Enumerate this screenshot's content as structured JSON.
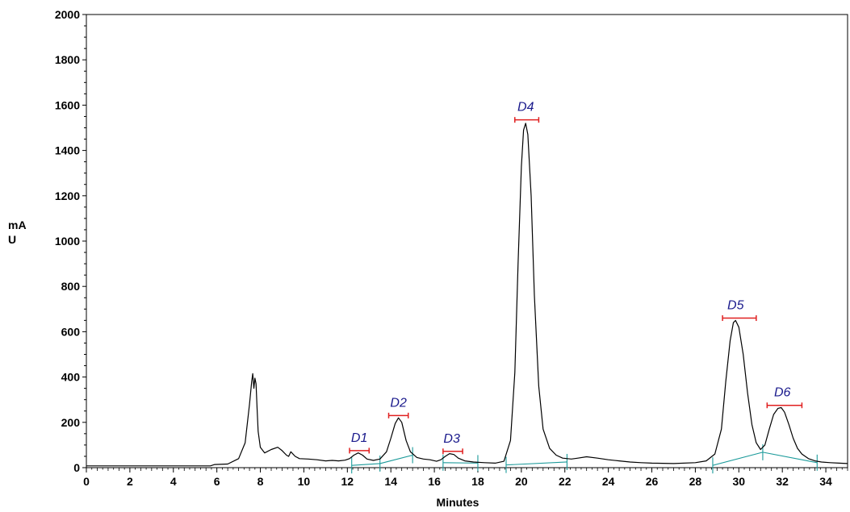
{
  "chart_data": {
    "type": "line",
    "title": "",
    "xlabel": "Minutes",
    "ylabel_line1": "mA",
    "ylabel_line2": "U",
    "xlim": [
      0,
      35
    ],
    "ylim": [
      0,
      2000
    ],
    "x_ticks": [
      0,
      2,
      4,
      6,
      8,
      10,
      12,
      14,
      16,
      18,
      20,
      22,
      24,
      26,
      28,
      30,
      32,
      34
    ],
    "y_ticks": [
      0,
      200,
      400,
      600,
      800,
      1000,
      1200,
      1400,
      1600,
      1800,
      2000
    ],
    "grid": false,
    "legend": "none",
    "colors": {
      "trace": "#000000",
      "baseline": "#1a9a9a",
      "marker": "#e02020",
      "label": "#1a1a8c"
    },
    "series": [
      {
        "x": [
          0,
          5.7,
          5.9,
          6.5,
          7.0,
          7.3,
          7.5,
          7.6,
          7.65,
          7.7,
          7.75,
          7.8,
          7.85,
          7.9,
          8.0,
          8.2,
          8.5,
          8.8,
          9.0,
          9.2,
          9.3,
          9.4,
          9.6,
          9.8,
          10.2,
          10.6,
          11.0,
          11.3,
          11.6,
          11.9,
          12.1,
          12.3,
          12.5,
          12.7,
          12.9,
          13.2,
          13.5,
          13.8,
          14.0,
          14.2,
          14.35,
          14.5,
          14.7,
          14.9,
          15.2,
          15.5,
          15.8,
          16.1,
          16.3,
          16.5,
          16.7,
          16.9,
          17.1,
          17.4,
          17.8,
          18.3,
          18.8,
          19.2,
          19.5,
          19.7,
          19.85,
          20.0,
          20.1,
          20.2,
          20.3,
          20.45,
          20.6,
          20.8,
          21.0,
          21.3,
          21.6,
          21.9,
          22.3,
          22.6,
          23.0,
          23.5,
          24.0,
          24.5,
          25.0,
          25.5,
          26.0,
          27.0,
          28.0,
          28.5,
          28.9,
          29.2,
          29.4,
          29.6,
          29.75,
          29.85,
          30.0,
          30.2,
          30.4,
          30.6,
          30.8,
          31.0,
          31.2,
          31.4,
          31.6,
          31.8,
          31.95,
          32.1,
          32.3,
          32.5,
          32.7,
          32.9,
          33.2,
          33.5,
          33.8,
          34.2,
          34.6,
          35.0
        ],
        "y": [
          8,
          8,
          14,
          16,
          40,
          110,
          280,
          380,
          415,
          350,
          395,
          370,
          260,
          160,
          90,
          65,
          80,
          90,
          75,
          55,
          50,
          70,
          50,
          40,
          38,
          35,
          30,
          32,
          30,
          33,
          40,
          55,
          65,
          55,
          38,
          32,
          38,
          70,
          130,
          195,
          220,
          200,
          120,
          70,
          45,
          38,
          35,
          28,
          35,
          50,
          62,
          58,
          42,
          30,
          25,
          22,
          20,
          28,
          120,
          420,
          900,
          1330,
          1490,
          1520,
          1470,
          1200,
          760,
          360,
          170,
          85,
          55,
          42,
          38,
          42,
          48,
          42,
          35,
          30,
          25,
          22,
          20,
          18,
          22,
          30,
          60,
          170,
          380,
          560,
          640,
          650,
          620,
          500,
          330,
          190,
          110,
          80,
          100,
          170,
          235,
          262,
          265,
          245,
          190,
          130,
          85,
          60,
          40,
          30,
          25,
          22,
          20,
          18
        ]
      }
    ],
    "baselines": [
      {
        "x": [
          12.2,
          13.5
        ],
        "y": [
          10,
          18
        ]
      },
      {
        "x": [
          13.5,
          15.0
        ],
        "y": [
          18,
          55
        ]
      },
      {
        "x": [
          16.4,
          18.0
        ],
        "y": [
          22,
          20
        ]
      },
      {
        "x": [
          19.3,
          22.1
        ],
        "y": [
          12,
          25
        ]
      },
      {
        "x": [
          28.8,
          31.1
        ],
        "y": [
          10,
          68
        ]
      },
      {
        "x": [
          31.1,
          33.6
        ],
        "y": [
          68,
          22
        ]
      }
    ],
    "baseline_ticks": [
      12.2,
      13.5,
      15.0,
      16.4,
      18.0,
      19.3,
      22.1,
      28.8,
      31.1,
      33.6
    ],
    "peaks": [
      {
        "label": "D1",
        "x": 12.55,
        "marker_y": 75,
        "range": [
          12.1,
          13.0
        ]
      },
      {
        "label": "D2",
        "x": 14.35,
        "marker_y": 230,
        "range": [
          13.9,
          14.8
        ]
      },
      {
        "label": "D3",
        "x": 16.8,
        "marker_y": 72,
        "range": [
          16.4,
          17.3
        ]
      },
      {
        "label": "D4",
        "x": 20.2,
        "marker_y": 1535,
        "range": [
          19.7,
          20.8
        ]
      },
      {
        "label": "D5",
        "x": 29.85,
        "marker_y": 660,
        "range": [
          29.25,
          30.8
        ]
      },
      {
        "label": "D6",
        "x": 32.0,
        "marker_y": 275,
        "range": [
          31.3,
          32.9
        ]
      }
    ]
  }
}
